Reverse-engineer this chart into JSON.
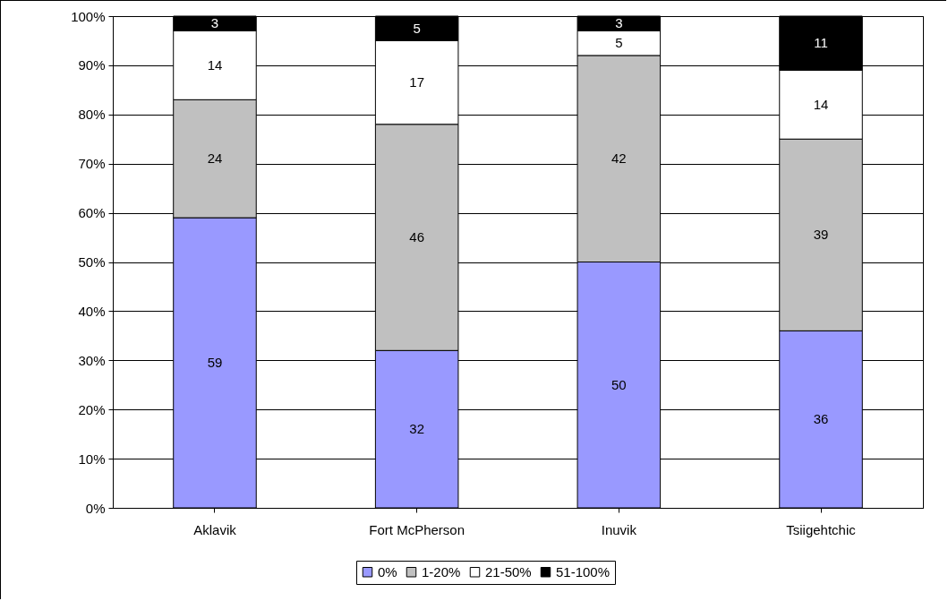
{
  "chart_data": {
    "type": "bar",
    "stacked": true,
    "categories": [
      "Aklavik",
      "Fort McPherson",
      "Inuvik",
      "Tsiigehtchic"
    ],
    "series": [
      {
        "name": "0%",
        "color": "#9999ff",
        "values": [
          59,
          32,
          50,
          36
        ]
      },
      {
        "name": "1-20%",
        "color": "#c0c0c0",
        "values": [
          24,
          46,
          42,
          39
        ]
      },
      {
        "name": "21-50%",
        "color": "#ffffff",
        "values": [
          14,
          17,
          5,
          14
        ]
      },
      {
        "name": "51-100%",
        "color": "#000000",
        "values": [
          3,
          5,
          3,
          11
        ]
      }
    ],
    "ylim": [
      0,
      100
    ],
    "yticks": [
      {
        "value": 0,
        "label": "0%"
      },
      {
        "value": 10,
        "label": "10%"
      },
      {
        "value": 20,
        "label": "20%"
      },
      {
        "value": 30,
        "label": "30%"
      },
      {
        "value": 40,
        "label": "40%"
      },
      {
        "value": 50,
        "label": "50%"
      },
      {
        "value": 60,
        "label": "60%"
      },
      {
        "value": 70,
        "label": "70%"
      },
      {
        "value": 80,
        "label": "80%"
      },
      {
        "value": 90,
        "label": "90%"
      },
      {
        "value": 100,
        "label": "100%"
      }
    ],
    "grid": "y",
    "legend": "bottom",
    "data_labels": true
  }
}
